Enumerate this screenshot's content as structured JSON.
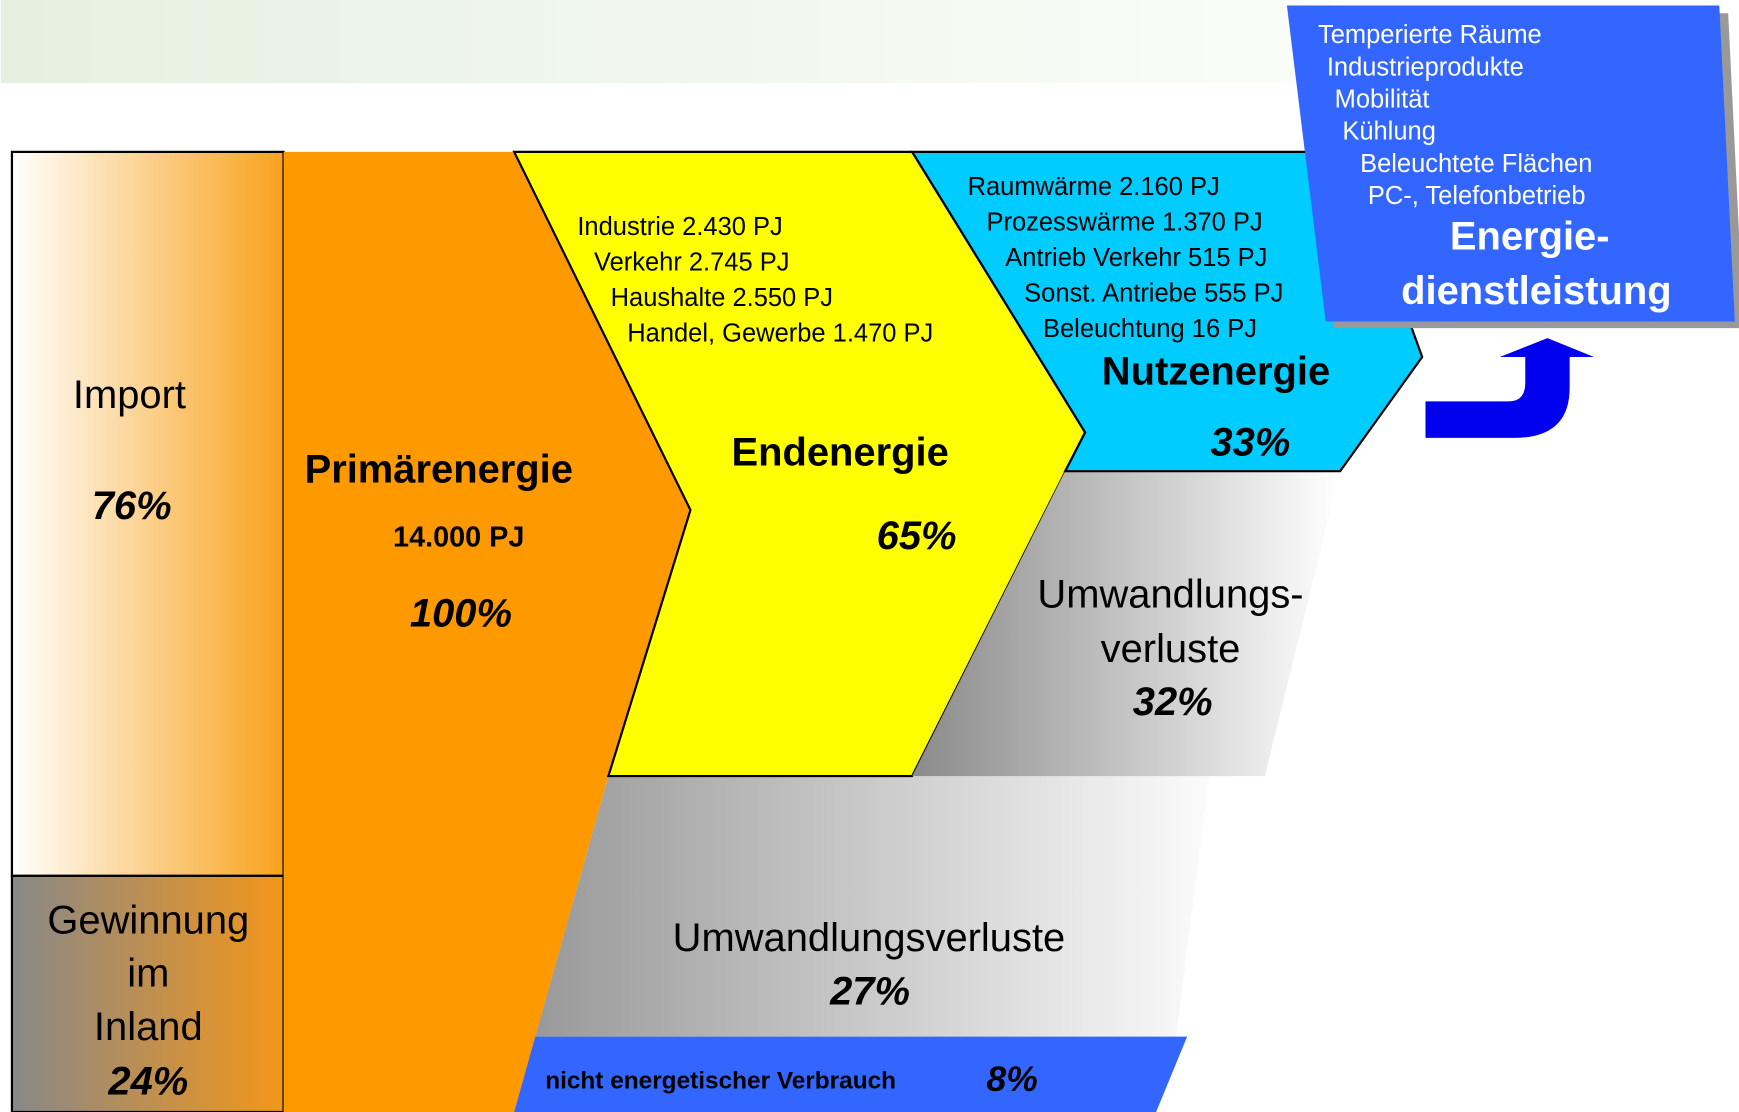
{
  "import": {
    "label": "Import",
    "share": "76%"
  },
  "domestic": {
    "label": [
      "Gewinnung",
      "im",
      "Inland"
    ],
    "share": "24%"
  },
  "primary": {
    "title": "Primärenergie",
    "amount": "14.000 PJ",
    "share": "100%"
  },
  "final": {
    "title": "Endenergie",
    "share": "65%",
    "items": [
      "Industrie 2.430 PJ",
      "Verkehr 2.745 PJ",
      "Haushalte 2.550 PJ",
      "Handel, Gewerbe 1.470 PJ"
    ]
  },
  "useful": {
    "title": "Nutzenergie",
    "share": "33%",
    "items": [
      "Raumwärme 2.160 PJ",
      "Prozesswärme 1.370 PJ",
      "Antrieb Verkehr 515 PJ",
      "Sonst. Antriebe 555 PJ",
      "Beleuchtung 16 PJ"
    ]
  },
  "losses_upper": {
    "label": [
      "Umwandlungs-",
      "verluste"
    ],
    "share": "32%"
  },
  "losses_lower": {
    "label": "Umwandlungsverluste",
    "share": "27%"
  },
  "non_energy": {
    "label": "nicht energetischer Verbrauch",
    "share": "8%"
  },
  "services": {
    "items": [
      "Temperierte Räume",
      "Industrieprodukte",
      "Mobilität",
      "Kühlung",
      "Beleuchtete Flächen",
      "PC-, Telefonbetrieb"
    ],
    "title": [
      "Energie-",
      "dienstleistung"
    ]
  }
}
